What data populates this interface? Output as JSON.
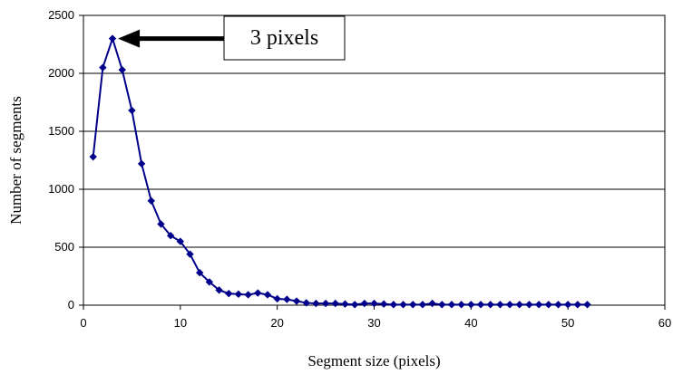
{
  "chart_data": {
    "type": "line",
    "title": "",
    "xlabel": "Segment size (pixels)",
    "ylabel": "Number of segments",
    "xlim": [
      0,
      60
    ],
    "ylim": [
      0,
      2500
    ],
    "xticks": [
      0,
      10,
      20,
      30,
      40,
      50,
      60
    ],
    "yticks": [
      0,
      500,
      1000,
      1500,
      2000,
      2500
    ],
    "grid": "horizontal",
    "legend": "none",
    "series": [
      {
        "color": "#00008b",
        "marker": "diamond",
        "x": [
          1,
          2,
          3,
          4,
          5,
          6,
          7,
          8,
          9,
          10,
          11,
          12,
          13,
          14,
          15,
          16,
          17,
          18,
          19,
          20,
          21,
          22,
          23,
          24,
          25,
          26,
          27,
          28,
          29,
          30,
          31,
          32,
          33,
          34,
          35,
          36,
          37,
          38,
          39,
          40,
          41,
          42,
          43,
          44,
          45,
          46,
          47,
          48,
          49,
          50,
          51,
          52
        ],
        "values": [
          1280,
          2050,
          2300,
          2030,
          1680,
          1220,
          900,
          700,
          600,
          550,
          440,
          280,
          200,
          130,
          100,
          95,
          90,
          105,
          90,
          55,
          50,
          35,
          20,
          15,
          15,
          15,
          10,
          5,
          15,
          15,
          10,
          5,
          5,
          5,
          5,
          15,
          5,
          5,
          5,
          5,
          5,
          5,
          5,
          5,
          5,
          5,
          5,
          5,
          5,
          5,
          5,
          5
        ]
      }
    ],
    "annotation": {
      "text": "3 pixels",
      "target_x": 3,
      "target_y": 2300
    }
  }
}
